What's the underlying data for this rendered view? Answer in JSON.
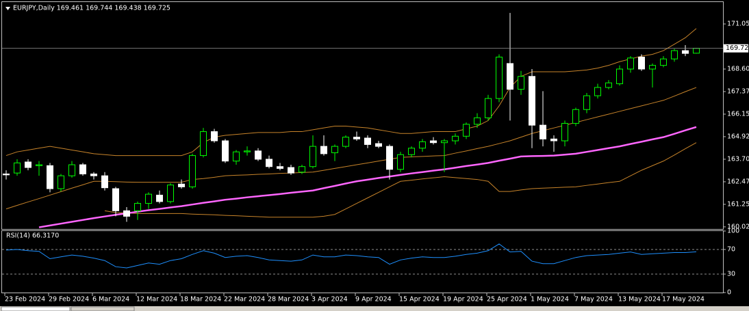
{
  "chart_data": [
    {
      "type": "candlestick",
      "title": "EURJPY,Daily 169.461 169.744 169.438 169.725",
      "categories": [
        "23 Feb 2024",
        null,
        null,
        null,
        "29 Feb 2024",
        null,
        null,
        null,
        "6 Mar 2024",
        null,
        null,
        null,
        "12 Mar 2024",
        null,
        null,
        null,
        "18 Mar 2024",
        null,
        null,
        null,
        "22 Mar 2024",
        null,
        null,
        null,
        "28 Mar 2024",
        null,
        null,
        null,
        "3 Apr 2024",
        null,
        null,
        null,
        "9 Apr 2024",
        null,
        null,
        null,
        "15 Apr 2024",
        null,
        null,
        null,
        "19 Apr 2024",
        null,
        null,
        null,
        "25 Apr 2024",
        null,
        null,
        null,
        "1 May 2024",
        null,
        null,
        null,
        "7 May 2024",
        null,
        null,
        null,
        "13 May 2024",
        null,
        null,
        null,
        "17 May 2024",
        null,
        null,
        null
      ],
      "candles": [
        [
          162.9,
          163.1,
          162.6,
          162.85
        ],
        [
          162.95,
          163.7,
          162.8,
          163.5
        ],
        [
          163.55,
          163.7,
          163.1,
          163.25
        ],
        [
          163.35,
          163.6,
          162.8,
          163.4
        ],
        [
          163.35,
          163.5,
          161.9,
          162.1
        ],
        [
          162.1,
          162.9,
          161.95,
          162.8
        ],
        [
          162.8,
          163.6,
          162.7,
          163.4
        ],
        [
          163.4,
          163.5,
          162.8,
          162.9
        ],
        [
          162.9,
          163.0,
          162.6,
          162.8
        ],
        [
          162.8,
          163.0,
          162.0,
          162.15
        ],
        [
          162.1,
          162.2,
          160.6,
          160.9
        ],
        [
          160.9,
          161.1,
          160.3,
          160.6
        ],
        [
          160.9,
          161.4,
          160.4,
          161.3
        ],
        [
          161.3,
          161.9,
          161.0,
          161.8
        ],
        [
          161.75,
          162.0,
          161.3,
          161.4
        ],
        [
          161.4,
          162.4,
          161.3,
          162.3
        ],
        [
          162.35,
          162.6,
          162.1,
          162.2
        ],
        [
          162.2,
          164.0,
          162.1,
          163.9
        ],
        [
          163.9,
          165.4,
          163.8,
          165.2
        ],
        [
          165.2,
          165.35,
          164.6,
          164.7
        ],
        [
          164.7,
          164.8,
          163.5,
          163.6
        ],
        [
          163.6,
          164.2,
          163.4,
          164.1
        ],
        [
          164.1,
          164.4,
          163.9,
          164.15
        ],
        [
          164.15,
          164.3,
          163.6,
          163.7
        ],
        [
          163.7,
          163.9,
          163.2,
          163.3
        ],
        [
          163.3,
          163.5,
          163.1,
          163.2
        ],
        [
          163.25,
          163.4,
          162.85,
          162.95
        ],
        [
          163.0,
          163.4,
          162.9,
          163.3
        ],
        [
          163.3,
          165.0,
          163.2,
          164.4
        ],
        [
          164.4,
          165.0,
          163.9,
          164.0
        ],
        [
          164.05,
          164.5,
          163.6,
          164.4
        ],
        [
          164.4,
          165.0,
          164.3,
          164.9
        ],
        [
          164.9,
          165.2,
          164.7,
          164.8
        ],
        [
          164.85,
          165.0,
          164.3,
          164.5
        ],
        [
          164.55,
          164.7,
          164.3,
          164.4
        ],
        [
          164.4,
          164.5,
          162.6,
          163.15
        ],
        [
          163.15,
          164.1,
          163.0,
          163.95
        ],
        [
          163.95,
          164.4,
          163.8,
          164.3
        ],
        [
          164.3,
          164.8,
          164.1,
          164.65
        ],
        [
          164.7,
          164.9,
          164.5,
          164.6
        ],
        [
          164.6,
          164.8,
          163.0,
          164.7
        ],
        [
          164.7,
          165.1,
          164.5,
          164.95
        ],
        [
          164.95,
          165.7,
          164.8,
          165.6
        ],
        [
          165.6,
          166.2,
          165.4,
          165.95
        ],
        [
          165.95,
          167.2,
          165.8,
          167.0
        ],
        [
          167.0,
          169.4,
          166.8,
          169.25
        ],
        [
          168.9,
          171.65,
          165.8,
          167.5
        ],
        [
          167.5,
          168.5,
          167.2,
          168.2
        ],
        [
          168.2,
          168.6,
          164.3,
          165.55
        ],
        [
          165.55,
          167.4,
          164.4,
          164.8
        ],
        [
          164.8,
          165.0,
          164.1,
          164.7
        ],
        [
          164.7,
          165.8,
          164.4,
          165.65
        ],
        [
          165.65,
          166.5,
          165.5,
          166.4
        ],
        [
          166.4,
          167.3,
          166.2,
          167.15
        ],
        [
          167.15,
          167.8,
          167.0,
          167.6
        ],
        [
          167.6,
          168.0,
          167.5,
          167.85
        ],
        [
          167.8,
          168.8,
          167.7,
          168.6
        ],
        [
          168.6,
          169.3,
          168.4,
          169.2
        ],
        [
          169.25,
          169.4,
          168.5,
          168.6
        ],
        [
          168.6,
          168.9,
          167.6,
          168.8
        ],
        [
          168.8,
          169.3,
          168.7,
          169.15
        ],
        [
          169.15,
          169.7,
          169.0,
          169.6
        ],
        [
          169.6,
          169.9,
          169.3,
          169.45
        ],
        [
          169.461,
          169.744,
          169.438,
          169.725
        ]
      ],
      "bull_color": "#00ff00",
      "bear_color": "#ffffff",
      "overlays": [
        {
          "color": "#c8842a",
          "width": 1,
          "values": [
            163.9,
            164.1,
            164.2,
            164.3,
            164.4,
            164.3,
            164.2,
            164.1,
            164.0,
            163.95,
            163.9,
            163.9,
            163.9,
            163.9,
            163.9,
            163.9,
            163.9,
            164.1,
            164.6,
            164.9,
            165.0,
            165.05,
            165.1,
            165.15,
            165.15,
            165.15,
            165.2,
            165.2,
            165.3,
            165.4,
            165.5,
            165.5,
            165.45,
            165.4,
            165.3,
            165.2,
            165.1,
            165.1,
            165.15,
            165.2,
            165.2,
            165.2,
            165.35,
            165.5,
            165.8,
            166.6,
            167.6,
            168.2,
            168.45,
            168.45,
            168.45,
            168.45,
            168.5,
            168.55,
            168.65,
            168.8,
            169.0,
            169.15,
            169.3,
            169.4,
            169.6,
            169.95,
            170.3,
            170.8
          ]
        },
        {
          "color": "#c8842a",
          "width": 1,
          "values": [
            161.0,
            161.19,
            161.38,
            161.56,
            161.75,
            161.94,
            162.13,
            162.31,
            162.5,
            162.5,
            162.48,
            162.46,
            162.45,
            162.45,
            162.45,
            162.45,
            162.45,
            162.6,
            162.65,
            162.72,
            162.8,
            162.83,
            162.85,
            162.88,
            162.9,
            162.93,
            162.95,
            162.98,
            163.0,
            163.1,
            163.2,
            163.3,
            163.4,
            163.5,
            163.6,
            163.7,
            163.8,
            163.83,
            163.85,
            163.88,
            163.9,
            164.03,
            164.15,
            164.28,
            164.4,
            164.55,
            164.7,
            164.9,
            165.1,
            165.25,
            165.4,
            165.55,
            165.7,
            165.85,
            166.0,
            166.15,
            166.3,
            166.45,
            166.6,
            166.75,
            166.9,
            167.13,
            167.37,
            167.6
          ]
        },
        {
          "color": "#c8842a",
          "width": 1,
          "values": [
            null,
            null,
            null,
            null,
            null,
            null,
            null,
            null,
            null,
            160.9,
            160.8,
            160.78,
            160.75,
            160.75,
            160.75,
            160.75,
            160.75,
            160.72,
            160.7,
            160.68,
            160.65,
            160.63,
            160.6,
            160.58,
            160.55,
            160.55,
            160.55,
            160.55,
            160.55,
            160.6,
            160.7,
            161.0,
            161.3,
            161.6,
            161.9,
            162.2,
            162.5,
            162.56,
            162.63,
            162.69,
            162.75,
            162.7,
            162.65,
            162.6,
            162.5,
            161.95,
            161.95,
            162.03,
            162.1,
            162.13,
            162.15,
            162.18,
            162.2,
            162.28,
            162.35,
            162.43,
            162.5,
            162.8,
            163.1,
            163.35,
            163.6,
            163.93,
            164.27,
            164.6
          ]
        },
        {
          "color": "#ff66ff",
          "width": 2.5,
          "values": [
            null,
            null,
            null,
            160.0,
            160.1,
            160.2,
            160.3,
            160.4,
            160.5,
            160.59,
            160.68,
            160.76,
            160.85,
            160.93,
            161.0,
            161.08,
            161.15,
            161.24,
            161.33,
            161.41,
            161.5,
            161.56,
            161.63,
            161.69,
            161.75,
            161.81,
            161.88,
            161.94,
            162.0,
            162.13,
            162.25,
            162.38,
            162.5,
            162.59,
            162.68,
            162.76,
            162.85,
            162.93,
            163.0,
            163.08,
            163.15,
            163.24,
            163.33,
            163.41,
            163.5,
            163.62,
            163.73,
            163.85,
            163.87,
            163.88,
            163.9,
            163.95,
            164.0,
            164.1,
            164.2,
            164.3,
            164.4,
            164.53,
            164.65,
            164.78,
            164.9,
            165.08,
            165.27,
            165.45
          ]
        }
      ],
      "ylim": [
        159.91,
        172.24
      ],
      "yticks": [
        160.025,
        {
          "value": 161.25,
          "label": "161.250"
        },
        162.475,
        {
          "value": 163.7,
          "label": "163.700"
        },
        164.925,
        {
          "value": 166.15,
          "label": "166.150"
        },
        167.375,
        {
          "value": 168.6,
          "label": "168.600"
        },
        {
          "value": 171.05,
          "label": "171.050"
        }
      ]
    },
    {
      "type": "line",
      "title": "RSI(14) 66.3170",
      "color": "#1e90ff",
      "values": [
        69,
        70,
        68,
        67,
        55,
        58,
        61,
        59,
        56,
        52,
        42,
        40,
        44,
        48,
        46,
        52,
        55,
        62,
        68,
        64,
        57,
        59,
        60,
        57,
        53,
        52,
        51,
        53,
        61,
        58,
        58,
        61,
        60,
        58,
        57,
        46,
        53,
        56,
        58,
        57,
        57,
        59,
        62,
        64,
        68,
        79,
        66,
        67,
        51,
        47,
        47,
        52,
        57,
        60,
        61,
        62,
        64,
        66,
        62,
        63,
        64,
        65,
        65,
        66.317
      ],
      "ylim": [
        0,
        100
      ],
      "yticks": [
        100,
        70,
        30,
        0
      ],
      "levels": [
        70,
        30
      ]
    }
  ]
}
